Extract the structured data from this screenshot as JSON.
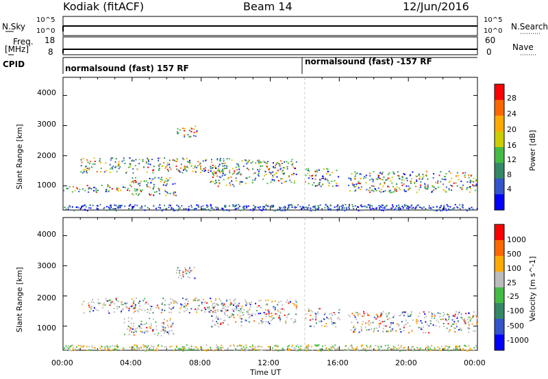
{
  "header": {
    "station": "Kodiak (fitACF)",
    "beam": "Beam 14",
    "date": "12/Jun/2016"
  },
  "strip": {
    "nsky_label": "N.Sky",
    "nsky_ticks": [
      "10^5",
      "10^0"
    ],
    "nsearch_label": "N.Search",
    "nsearch_ticks": [
      "10^5",
      "10^0"
    ],
    "freq_label_1": "Freq.",
    "freq_label_2": "[MHz]",
    "freq_ticks": [
      "18",
      "8"
    ],
    "nave_label": "Nave",
    "nave_ticks": [
      "60",
      "0"
    ],
    "cpid_label": "CPID",
    "cpid_mode_1": "normalsound (fast) 157 RF",
    "cpid_mode_2": "normalsound (fast) -157 RF"
  },
  "chart_data": [
    {
      "type": "heatmap",
      "panel": "power",
      "ylabel": "Slant Range [km]",
      "ylim": [
        200,
        4600
      ],
      "yticks": [
        "4000",
        "3000",
        "2000",
        "1000"
      ],
      "xlim_hours": [
        0,
        24
      ],
      "colorbar_label": "Power [dB]",
      "colorbar_ticks": [
        "28",
        "24",
        "20",
        "16",
        "12",
        "8",
        "4"
      ],
      "colorbar_colors": [
        "#0000ff",
        "#3355cc",
        "#338866",
        "#44bb44",
        "#cccc00",
        "#ffaa00",
        "#ff6600",
        "#ff0000"
      ],
      "echo_regions": [
        {
          "t": [
            1.0,
            10.0
          ],
          "range": [
            1450,
            1950
          ]
        },
        {
          "t": [
            0.0,
            3.5
          ],
          "range": [
            800,
            1050
          ]
        },
        {
          "t": [
            3.5,
            6.5
          ],
          "range": [
            700,
            1300
          ]
        },
        {
          "t": [
            6.5,
            7.8
          ],
          "range": [
            2600,
            3000
          ]
        },
        {
          "t": [
            8.5,
            10.3
          ],
          "range": [
            1000,
            1800
          ]
        },
        {
          "t": [
            10.3,
            13.5
          ],
          "range": [
            1100,
            1900
          ]
        },
        {
          "t": [
            14.0,
            16.0
          ],
          "range": [
            1000,
            1600
          ]
        },
        {
          "t": [
            16.5,
            24.0
          ],
          "range": [
            800,
            1500
          ]
        },
        {
          "t": [
            0.0,
            24.0
          ],
          "range": [
            200,
            400
          ]
        }
      ]
    },
    {
      "type": "heatmap",
      "panel": "velocity",
      "ylabel": "Slant Range [km]",
      "ylim": [
        200,
        4600
      ],
      "yticks": [
        "4000",
        "3000",
        "2000",
        "1000"
      ],
      "xlim_hours": [
        0,
        24
      ],
      "xlabel": "Time UT",
      "xticks": [
        "00:00",
        "04:00",
        "08:00",
        "12:00",
        "16:00",
        "20:00",
        "00:00"
      ],
      "colorbar_label": "Velocity [m s^-1]",
      "colorbar_ticks": [
        "1000",
        "500",
        "100",
        "25",
        "-25",
        "-100",
        "-500",
        "-1000"
      ],
      "colorbar_colors": [
        "#0000ff",
        "#3355cc",
        "#338866",
        "#44bb44",
        "#bbbbbb",
        "#ffaa00",
        "#ff6600",
        "#ff0000"
      ],
      "echo_regions": [
        {
          "t": [
            1.0,
            10.0
          ],
          "range": [
            1450,
            1950
          ]
        },
        {
          "t": [
            3.5,
            6.5
          ],
          "range": [
            700,
            1300
          ]
        },
        {
          "t": [
            6.5,
            7.8
          ],
          "range": [
            2600,
            3000
          ]
        },
        {
          "t": [
            8.5,
            10.3
          ],
          "range": [
            1000,
            1800
          ]
        },
        {
          "t": [
            10.3,
            13.5
          ],
          "range": [
            1100,
            1900
          ]
        },
        {
          "t": [
            14.0,
            16.0
          ],
          "range": [
            1000,
            1600
          ]
        },
        {
          "t": [
            16.5,
            24.0
          ],
          "range": [
            800,
            1500
          ]
        },
        {
          "t": [
            0.0,
            24.0
          ],
          "range": [
            200,
            400
          ]
        }
      ]
    }
  ]
}
